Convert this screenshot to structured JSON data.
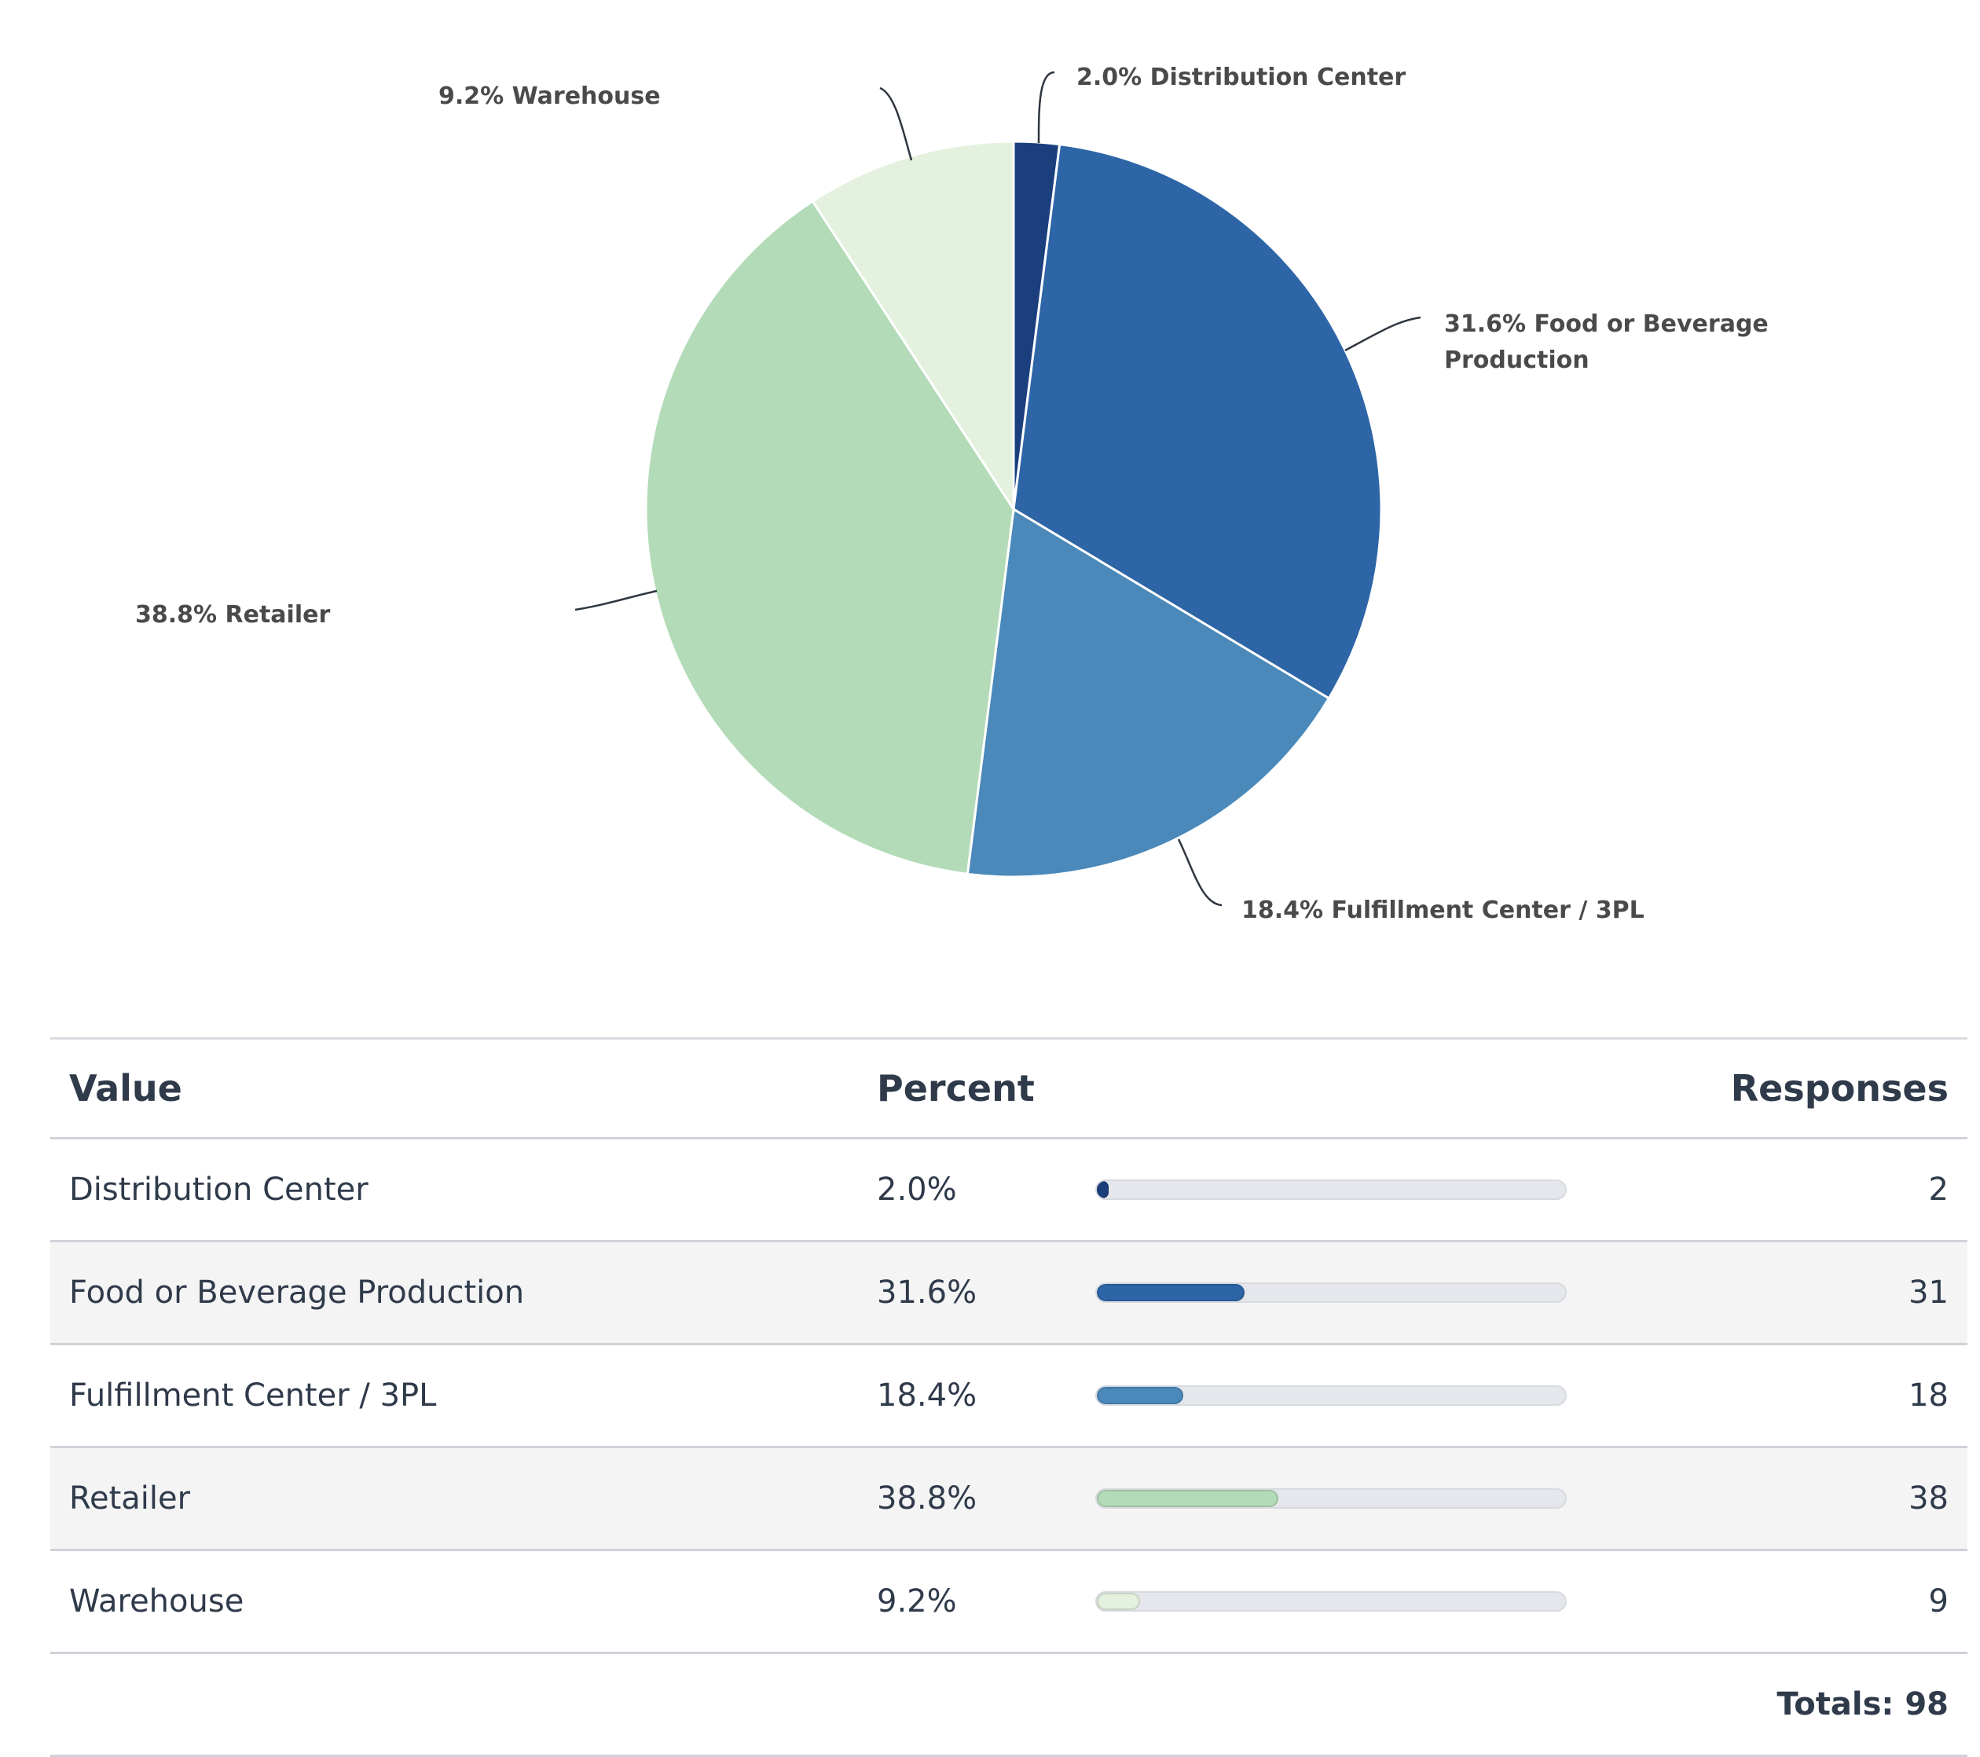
{
  "chart_data": {
    "type": "pie",
    "slices": [
      {
        "label": "Distribution Center",
        "percent": 2.0,
        "percent_label": "2.0%",
        "responses": 2,
        "color": "#1b3f7d"
      },
      {
        "label": "Food or Beverage Production",
        "percent": 31.6,
        "percent_label": "31.6%",
        "responses": 31,
        "color": "#2d65a7"
      },
      {
        "label": "Fulfillment Center / 3PL",
        "percent": 18.4,
        "percent_label": "18.4%",
        "responses": 18,
        "color": "#4a89ba"
      },
      {
        "label": "Retailer",
        "percent": 38.8,
        "percent_label": "38.8%",
        "responses": 38,
        "color": "#b3dbb8"
      },
      {
        "label": "Warehouse",
        "percent": 9.2,
        "percent_label": "9.2%",
        "responses": 9,
        "color": "#e4f1de"
      }
    ]
  },
  "table": {
    "headers": {
      "value": "Value",
      "percent": "Percent",
      "responses": "Responses"
    },
    "totals_label": "Totals: 98"
  }
}
